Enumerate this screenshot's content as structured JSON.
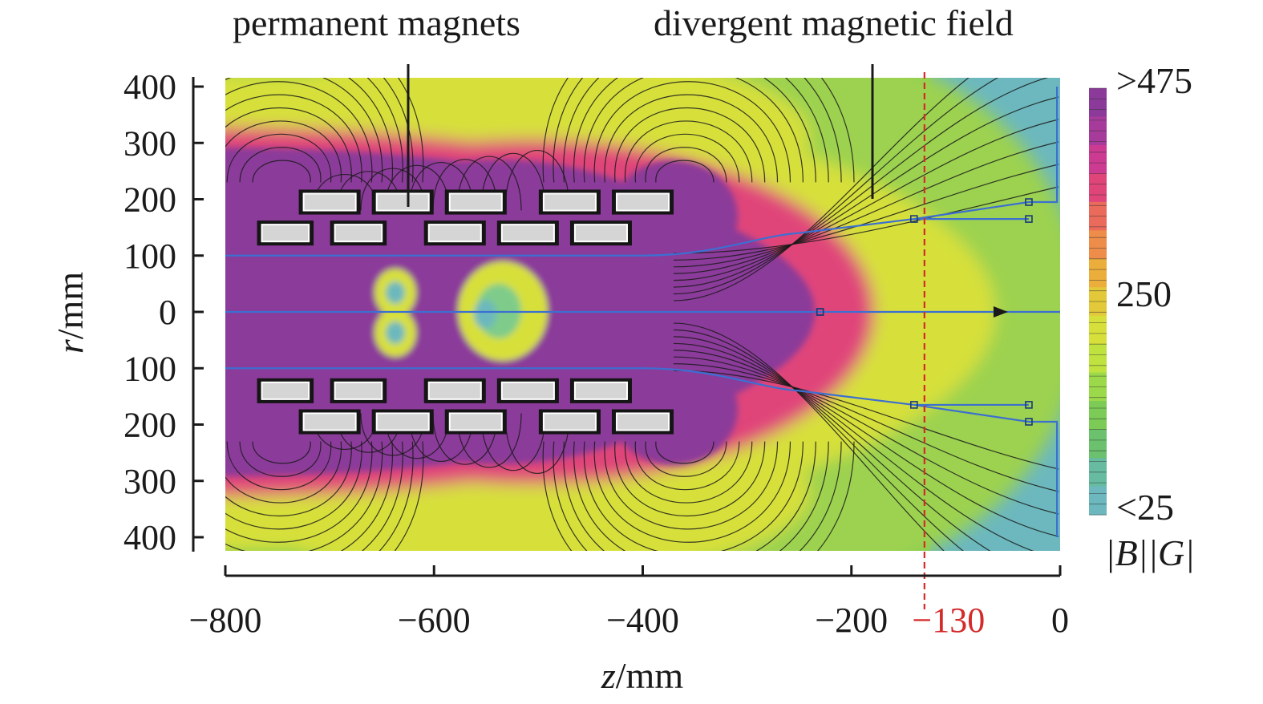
{
  "chart_data": {
    "type": "heatmap",
    "title": "",
    "annotations": [
      "permanent magnets",
      "divergent magnetic field"
    ],
    "xlabel": {
      "symbol": "z",
      "unit": "/mm"
    },
    "ylabel": {
      "symbol": "r",
      "unit": "/mm"
    },
    "xlim": [
      -800,
      0
    ],
    "ylim": [
      -400,
      400
    ],
    "x_ticks": [
      -800,
      -600,
      -400,
      -200,
      0
    ],
    "x_tick_labels": [
      "−800",
      "−600",
      "−400",
      "−200",
      "0"
    ],
    "y_ticks": [
      400,
      300,
      200,
      100,
      0,
      -100,
      -200,
      -300,
      -400
    ],
    "y_tick_labels": [
      "400",
      "300",
      "200",
      "100",
      "0",
      "100",
      "200",
      "300",
      "400"
    ],
    "marker_line": {
      "z": -130,
      "label": "−130",
      "color": "#d42a2a",
      "style": "dashed"
    },
    "colorbar": {
      "quantity": "|B||G|",
      "labels": [
        ">475",
        "250",
        "<25"
      ],
      "values": [
        475,
        250,
        25
      ],
      "colors": [
        "#8b3a9a",
        "#a73b9c",
        "#cc3a92",
        "#e0457a",
        "#ea6a5c",
        "#ee8d49",
        "#ecae3a",
        "#e3c93a",
        "#d7e03a",
        "#bfe23f",
        "#9bd84a",
        "#7ccb57",
        "#6cc16e",
        "#66bba0",
        "#6cb8be"
      ]
    },
    "magnets": [
      {
        "z": [
          -765,
          -720
        ],
        "r": [
          125,
          155
        ]
      },
      {
        "z": [
          -695,
          -650
        ],
        "r": [
          125,
          155
        ]
      },
      {
        "z": [
          -605,
          -555
        ],
        "r": [
          125,
          155
        ]
      },
      {
        "z": [
          -535,
          -485
        ],
        "r": [
          125,
          155
        ]
      },
      {
        "z": [
          -465,
          -415
        ],
        "r": [
          125,
          155
        ]
      },
      {
        "z": [
          -725,
          -675
        ],
        "r": [
          180,
          210
        ]
      },
      {
        "z": [
          -655,
          -605
        ],
        "r": [
          180,
          210
        ]
      },
      {
        "z": [
          -585,
          -535
        ],
        "r": [
          180,
          210
        ]
      },
      {
        "z": [
          -495,
          -445
        ],
        "r": [
          180,
          210
        ]
      },
      {
        "z": [
          -425,
          -375
        ],
        "r": [
          180,
          210
        ]
      }
    ],
    "trajectories": [
      {
        "r_start": 0,
        "z_split": -230,
        "r_end": 0
      },
      {
        "r_start": 100,
        "z_split": -250,
        "r_end": 165
      },
      {
        "r_start": 100,
        "z_split": -250,
        "r_end": 195
      }
    ],
    "colors": {
      "core": "#8b3a9a",
      "edge": "#e0457a",
      "yellow": "#d7e03a",
      "green": "#7ccb57",
      "cyan": "#6cb8be",
      "trajectory": "#3c6fd1"
    }
  }
}
